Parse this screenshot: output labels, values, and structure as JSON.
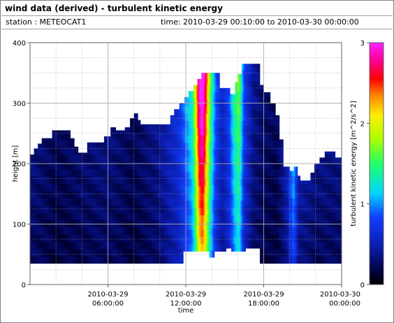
{
  "title": "wind data (derived) - turbulent kinetic energy",
  "station_label": "station : METEOCAT1",
  "time_label": "time: 2010-03-29 00:10:00 to 2010-03-30 00:00:00",
  "colors": {
    "background": "#000000",
    "grid": "#aaaaaa"
  },
  "chart_data": {
    "type": "heatmap",
    "xlabel": "time",
    "ylabel": "height [m]",
    "colorbar_label": "turbulent kinetic energy [m^2/s^2]",
    "colormap": "jet-like (black to magenta)",
    "x_range_hours": [
      0,
      24
    ],
    "ylim": [
      0,
      400
    ],
    "clim": [
      0,
      3
    ],
    "x_ticks": [
      {
        "hour": 6,
        "line1": "2010-03-29",
        "line2": "06:00:00"
      },
      {
        "hour": 12,
        "line1": "2010-03-29",
        "line2": "12:00:00"
      },
      {
        "hour": 18,
        "line1": "2010-03-29",
        "line2": "18:00:00"
      },
      {
        "hour": 24,
        "line1": "2010-03-30",
        "line2": "00:00:00"
      }
    ],
    "y_ticks": [
      0,
      100,
      200,
      300,
      400
    ],
    "colorbar_ticks": [
      0,
      1,
      2,
      3
    ],
    "profile_top_heights_m": [
      {
        "hour": 0.0,
        "top": 215
      },
      {
        "hour": 0.3,
        "top": 225
      },
      {
        "hour": 0.6,
        "top": 233
      },
      {
        "hour": 0.9,
        "top": 242
      },
      {
        "hour": 1.7,
        "top": 255
      },
      {
        "hour": 3.1,
        "top": 242
      },
      {
        "hour": 3.4,
        "top": 228
      },
      {
        "hour": 3.7,
        "top": 218
      },
      {
        "hour": 4.4,
        "top": 235
      },
      {
        "hour": 5.7,
        "top": 245
      },
      {
        "hour": 6.2,
        "top": 260
      },
      {
        "hour": 6.6,
        "top": 255
      },
      {
        "hour": 7.3,
        "top": 260
      },
      {
        "hour": 7.7,
        "top": 275
      },
      {
        "hour": 8.0,
        "top": 283
      },
      {
        "hour": 8.3,
        "top": 272
      },
      {
        "hour": 8.5,
        "top": 265
      },
      {
        "hour": 10.0,
        "top": 265
      },
      {
        "hour": 10.8,
        "top": 280
      },
      {
        "hour": 11.1,
        "top": 290
      },
      {
        "hour": 11.5,
        "top": 300
      },
      {
        "hour": 11.9,
        "top": 310
      },
      {
        "hour": 12.2,
        "top": 320
      },
      {
        "hour": 12.6,
        "top": 330
      },
      {
        "hour": 12.9,
        "top": 340
      },
      {
        "hour": 13.2,
        "top": 350
      },
      {
        "hour": 14.6,
        "top": 325
      },
      {
        "hour": 15.4,
        "top": 315
      },
      {
        "hour": 15.8,
        "top": 335
      },
      {
        "hour": 16.0,
        "top": 348
      },
      {
        "hour": 16.3,
        "top": 365
      },
      {
        "hour": 17.7,
        "top": 330
      },
      {
        "hour": 18.0,
        "top": 318
      },
      {
        "hour": 18.5,
        "top": 300
      },
      {
        "hour": 18.9,
        "top": 280
      },
      {
        "hour": 19.2,
        "top": 240
      },
      {
        "hour": 19.5,
        "top": 195
      },
      {
        "hour": 20.0,
        "top": 188
      },
      {
        "hour": 20.3,
        "top": 195
      },
      {
        "hour": 20.6,
        "top": 180
      },
      {
        "hour": 20.8,
        "top": 172
      },
      {
        "hour": 21.6,
        "top": 185
      },
      {
        "hour": 21.9,
        "top": 200
      },
      {
        "hour": 22.3,
        "top": 210
      },
      {
        "hour": 22.7,
        "top": 220
      },
      {
        "hour": 23.5,
        "top": 210
      },
      {
        "hour": 24.0,
        "top": 210
      }
    ],
    "profile_bottom_heights_m": [
      {
        "hour": 0.0,
        "top": 35
      },
      {
        "hour": 11.7,
        "top": 35
      },
      {
        "hour": 11.8,
        "top": 55
      },
      {
        "hour": 13.5,
        "top": 55
      },
      {
        "hour": 13.8,
        "top": 45
      },
      {
        "hour": 14.2,
        "top": 55
      },
      {
        "hour": 15.1,
        "top": 60
      },
      {
        "hour": 15.5,
        "top": 55
      },
      {
        "hour": 16.6,
        "top": 60
      },
      {
        "hour": 17.7,
        "top": 35
      },
      {
        "hour": 24.0,
        "top": 35
      }
    ],
    "tke_columns": [
      {
        "hour": 0.0,
        "tke": 0.3
      },
      {
        "hour": 2.0,
        "tke": 0.2
      },
      {
        "hour": 4.0,
        "tke": 0.25
      },
      {
        "hour": 6.0,
        "tke": 0.3
      },
      {
        "hour": 8.0,
        "tke": 0.2
      },
      {
        "hour": 10.0,
        "tke": 0.35
      },
      {
        "hour": 11.4,
        "tke": 0.6
      },
      {
        "hour": 12.0,
        "tke": 0.9
      },
      {
        "hour": 12.5,
        "tke": 1.2
      },
      {
        "hour": 12.8,
        "tke": 1.9
      },
      {
        "hour": 13.0,
        "tke": 2.6
      },
      {
        "hour": 13.3,
        "tke": 2.9
      },
      {
        "hour": 13.6,
        "tke": 2.2
      },
      {
        "hour": 13.9,
        "tke": 1.4
      },
      {
        "hour": 14.3,
        "tke": 0.8
      },
      {
        "hour": 14.8,
        "tke": 0.5
      },
      {
        "hour": 15.3,
        "tke": 0.7
      },
      {
        "hour": 15.8,
        "tke": 1.3
      },
      {
        "hour": 16.1,
        "tke": 1.5
      },
      {
        "hour": 16.5,
        "tke": 0.7
      },
      {
        "hour": 17.2,
        "tke": 0.35
      },
      {
        "hour": 18.0,
        "tke": 0.25
      },
      {
        "hour": 19.0,
        "tke": 0.2
      },
      {
        "hour": 19.8,
        "tke": 0.45
      },
      {
        "hour": 20.3,
        "tke": 1.0
      },
      {
        "hour": 20.7,
        "tke": 0.4
      },
      {
        "hour": 22.0,
        "tke": 0.3
      },
      {
        "hour": 24.0,
        "tke": 0.3
      }
    ]
  }
}
